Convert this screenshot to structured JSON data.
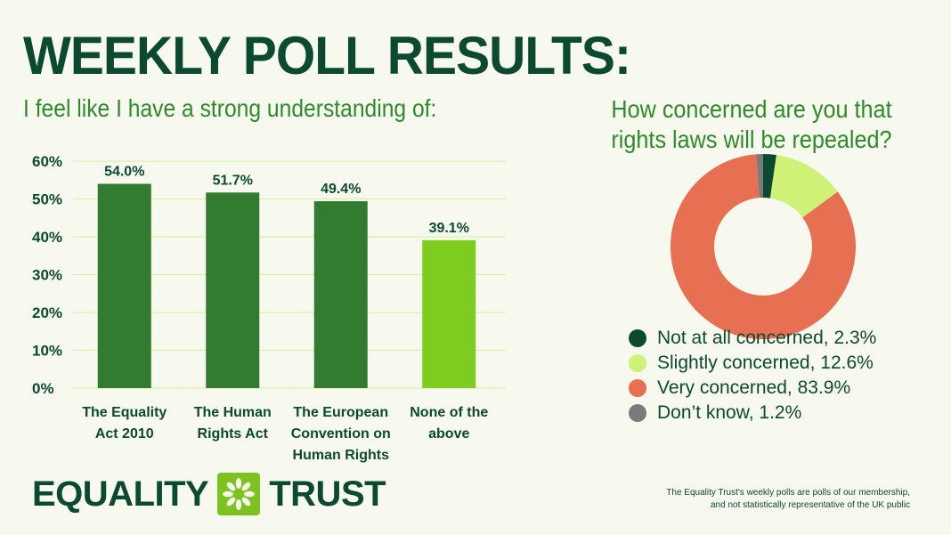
{
  "title": "WEEKLY POLL RESULTS:",
  "logo_text": {
    "left": "EQUALITY",
    "right": "TRUST"
  },
  "footnote": [
    "The Equality Trust's weekly polls are polls of our membership,",
    "and not statistically representative of the UK public"
  ],
  "chart_data": [
    {
      "type": "bar",
      "title": "I feel like I have a strong understanding of:",
      "categories": [
        [
          "The Equality",
          "Act 2010"
        ],
        [
          "The Human",
          "Rights Act"
        ],
        [
          "The European",
          "Convention on",
          "Human Rights"
        ],
        [
          "None of the",
          "above"
        ]
      ],
      "values": [
        54.0,
        51.7,
        49.4,
        39.1
      ],
      "data_labels": [
        "54.0%",
        "51.7%",
        "49.4%",
        "39.1%"
      ],
      "colors": [
        "#327c31",
        "#327c31",
        "#327c31",
        "#7fcc20"
      ],
      "yticks": [
        "0%",
        "10%",
        "20%",
        "30%",
        "40%",
        "50%",
        "60%"
      ],
      "ylim": [
        0,
        60
      ],
      "grid": true,
      "xlabel": "",
      "ylabel": ""
    },
    {
      "type": "pie",
      "donut": true,
      "title": "How concerned are you that rights laws will be repealed?",
      "title_lines": [
        "How concerned are you that",
        "rights laws will be repealed?"
      ],
      "labels": [
        "Not at all concerned, 2.3%",
        "Slightly concerned, 12.6%",
        "Very concerned, 83.9%",
        "Don’t know, 1.2%"
      ],
      "values": [
        2.3,
        12.6,
        83.9,
        1.2
      ],
      "colors": [
        "#0b4a30",
        "#cff176",
        "#e87052",
        "#7a7a7a"
      ],
      "legend": "bottom"
    }
  ]
}
